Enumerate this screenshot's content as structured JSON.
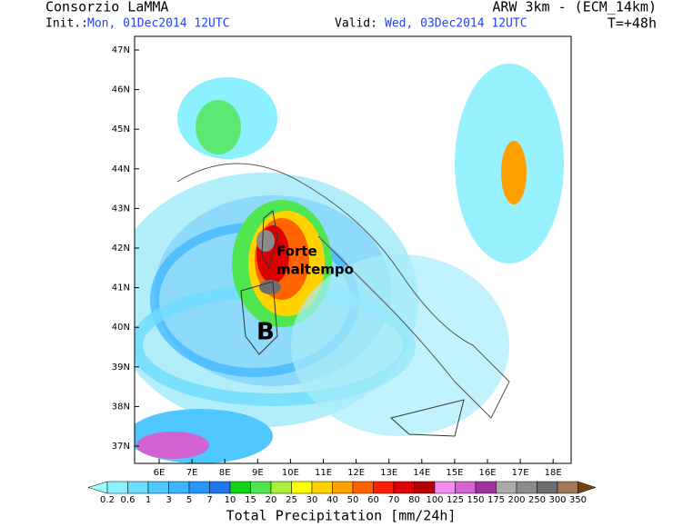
{
  "header": {
    "title": "Consorzio LaMMA",
    "model": "ARW 3km - (ECM_14km)",
    "init_label": "Init.:",
    "init": "Mon, 01Dec2014 12UTC",
    "valid_label": "Valid:",
    "valid": "Wed, 03Dec2014 12UTC",
    "lead": "T=+48h"
  },
  "map": {
    "lat_labels": [
      "47N",
      "46N",
      "45N",
      "44N",
      "43N",
      "42N",
      "41N",
      "40N",
      "39N",
      "38N",
      "37N"
    ],
    "lon_labels": [
      "6E",
      "7E",
      "8E",
      "9E",
      "10E",
      "11E",
      "12E",
      "13E",
      "14E",
      "15E",
      "16E",
      "17E",
      "18E"
    ],
    "annotation": [
      "Forte",
      "maltempo"
    ],
    "low": "B"
  },
  "colorbar": {
    "labels": [
      "0.2",
      "0.6",
      "1",
      "3",
      "5",
      "7",
      "10",
      "15",
      "20",
      "25",
      "30",
      "40",
      "50",
      "60",
      "70",
      "80",
      "100",
      "125",
      "150",
      "175",
      "200",
      "250",
      "300",
      "350"
    ],
    "colors": [
      "#a0fffa",
      "#8cf0ff",
      "#6edcff",
      "#50c8ff",
      "#3cb4ff",
      "#2896fa",
      "#1e78f0",
      "#14d214",
      "#50e650",
      "#aaf03c",
      "#ffff00",
      "#ffd200",
      "#ffa000",
      "#ff6400",
      "#ff1e00",
      "#dc0000",
      "#b40000",
      "#f08cf0",
      "#d264d2",
      "#a032a0",
      "#aaaaaa",
      "#8c8c8c",
      "#6e6e6e",
      "#a0785a",
      "#6e4614"
    ],
    "title": "Total Precipitation [mm/24h]"
  }
}
